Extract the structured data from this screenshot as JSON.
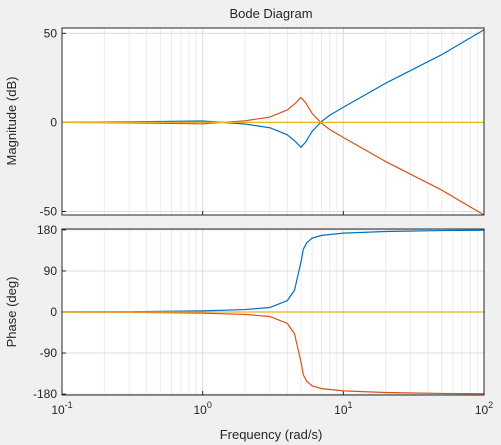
{
  "chart_data": {
    "type": "line",
    "title": "Bode Diagram",
    "xlabel": "Frequency  (rad/s)",
    "xscale": "log",
    "xlim": [
      0.1,
      100
    ],
    "x_ticks": [
      {
        "value": 0.1,
        "base": "10",
        "exp": "-1"
      },
      {
        "value": 1,
        "base": "10",
        "exp": "0"
      },
      {
        "value": 10,
        "base": "10",
        "exp": "1"
      },
      {
        "value": 100,
        "base": "10",
        "exp": "2"
      }
    ],
    "grid": true,
    "colors": {
      "background": "#f0f0f0",
      "axes_face": "#ffffff",
      "axis": "#262626",
      "grid_major": "#dcdcdc",
      "grid_minor": "#ececec",
      "series_blue": "#0072bd",
      "series_orange": "#d95319",
      "series_yellow": "#edb120"
    },
    "panels": [
      {
        "id": "magnitude",
        "ylabel": "Magnitude (dB)",
        "ylim": [
          -52,
          53
        ],
        "yticks": [
          -50,
          0,
          50
        ],
        "ytick_labels": [
          "-50",
          "0",
          "50"
        ],
        "series": [
          {
            "color": "#0072bd",
            "x": [
              0.1,
              0.3,
              1,
              2,
              3,
              4,
              4.6,
              5,
              5.4,
              6,
              7,
              8,
              10,
              20,
              50,
              100
            ],
            "y": [
              0.04,
              0.31,
              0.79,
              -0.9,
              -3,
              -7,
              -11,
              -14,
              -11,
              -5,
              0.5,
              4,
              8.5,
              22,
              38,
              52
            ]
          },
          {
            "color": "#d95319",
            "x": [
              0.1,
              0.3,
              1,
              2,
              3,
              4,
              4.6,
              5,
              5.4,
              6,
              7,
              8,
              10,
              20,
              50,
              100
            ],
            "y": [
              -0.04,
              -0.31,
              -0.79,
              0.9,
              3,
              7,
              11,
              14,
              11,
              5,
              -0.5,
              -4,
              -8.5,
              -22,
              -38,
              -52
            ]
          },
          {
            "color": "#edb120",
            "x": [
              0.1,
              100
            ],
            "y": [
              0,
              0
            ]
          }
        ]
      },
      {
        "id": "phase",
        "ylabel": "Phase (deg)",
        "ylim": [
          -182,
          182
        ],
        "yticks": [
          -180,
          -90,
          0,
          90,
          180
        ],
        "ytick_labels": [
          "-180",
          "-90",
          "0",
          "90",
          "180"
        ],
        "series": [
          {
            "color": "#0072bd",
            "x": [
              0.1,
              0.3,
              1,
              2,
              3,
              4,
              4.5,
              4.8,
              5,
              5.2,
              5.5,
              6,
              7,
              10,
              20,
              50,
              100
            ],
            "y": [
              0.2,
              0.7,
              2.4,
              5.4,
              9.8,
              25,
              48,
              86,
              110,
              138,
              152,
              162,
              168,
              173,
              176.5,
              178.6,
              179.3
            ]
          },
          {
            "color": "#d95319",
            "x": [
              0.1,
              0.3,
              1,
              2,
              3,
              4,
              4.5,
              4.8,
              5,
              5.2,
              5.5,
              6,
              7,
              10,
              20,
              50,
              100
            ],
            "y": [
              -0.2,
              -0.7,
              -2.4,
              -5.4,
              -9.8,
              -25,
              -48,
              -86,
              -110,
              -138,
              -152,
              -162,
              -168,
              -173,
              -176.5,
              -178.6,
              -179.3
            ]
          },
          {
            "color": "#edb120",
            "x": [
              0.1,
              100
            ],
            "y": [
              0,
              0
            ]
          }
        ]
      }
    ]
  }
}
